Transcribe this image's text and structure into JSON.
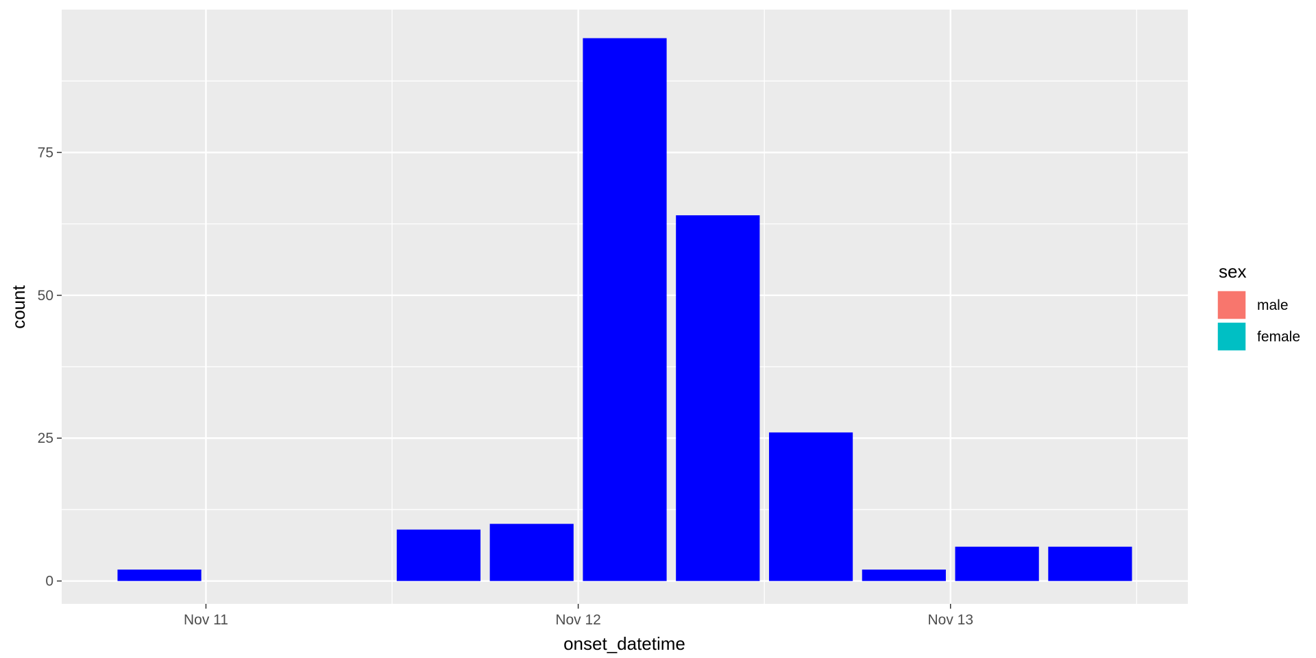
{
  "chart_data": {
    "type": "bar",
    "xlabel": "onset_datetime",
    "ylabel": "count",
    "x_type": "datetime",
    "x_tick_labels": [
      "Nov 11",
      "Nov 12",
      "Nov 13"
    ],
    "y_ticks": [
      0,
      25,
      50,
      75
    ],
    "ylim": [
      -4,
      100
    ],
    "bar_color": "#0000FF",
    "bars": [
      {
        "start": "2014-11-10T18:00",
        "end": "2014-11-11T00:00",
        "count": 2
      },
      {
        "start": "2014-11-11T00:00",
        "end": "2014-11-11T06:00",
        "count": 0
      },
      {
        "start": "2014-11-11T06:00",
        "end": "2014-11-11T12:00",
        "count": 0
      },
      {
        "start": "2014-11-11T12:00",
        "end": "2014-11-11T18:00",
        "count": 9
      },
      {
        "start": "2014-11-11T18:00",
        "end": "2014-11-12T00:00",
        "count": 10
      },
      {
        "start": "2014-11-12T00:00",
        "end": "2014-11-12T06:00",
        "count": 95
      },
      {
        "start": "2014-11-12T06:00",
        "end": "2014-11-12T12:00",
        "count": 64
      },
      {
        "start": "2014-11-12T12:00",
        "end": "2014-11-12T18:00",
        "count": 26
      },
      {
        "start": "2014-11-12T18:00",
        "end": "2014-11-13T00:00",
        "count": 2
      },
      {
        "start": "2014-11-13T00:00",
        "end": "2014-11-13T06:00",
        "count": 6
      },
      {
        "start": "2014-11-13T06:00",
        "end": "2014-11-13T12:00",
        "count": 6
      }
    ],
    "grid": true,
    "panel_background": "#EBEBEB",
    "legend": {
      "title": "sex",
      "position": "right",
      "entries": [
        {
          "label": "male",
          "color": "#F8766D"
        },
        {
          "label": "female",
          "color": "#00BFC4"
        }
      ]
    }
  }
}
